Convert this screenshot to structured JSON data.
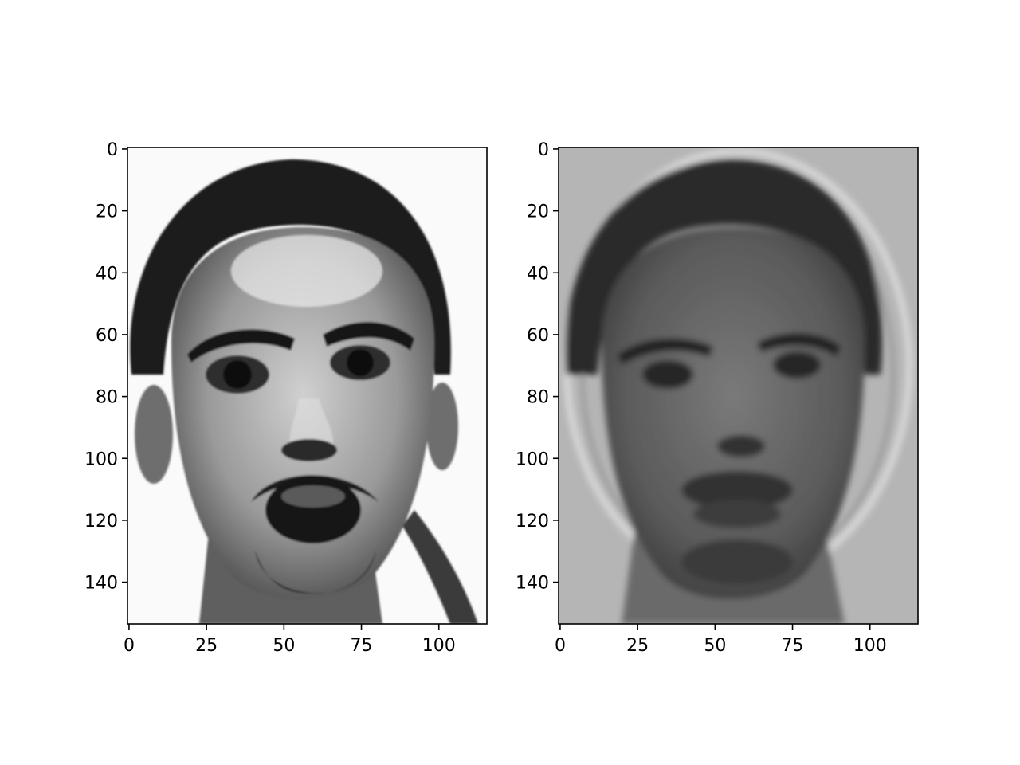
{
  "chart_data": [
    {
      "type": "heatmap",
      "colormap": "gray",
      "content": "grayscale face image (original)",
      "xlim": [
        -0.5,
        115.5
      ],
      "ylim": [
        153.5,
        -0.5
      ],
      "x_ticks": [
        0,
        25,
        50,
        75,
        100
      ],
      "y_ticks": [
        0,
        20,
        40,
        60,
        80,
        100,
        120,
        140
      ],
      "background_shade": "#fafafa",
      "title": "",
      "xlabel": "",
      "ylabel": ""
    },
    {
      "type": "heatmap",
      "colormap": "gray",
      "content": "grayscale face image (reconstruction, blurred)",
      "xlim": [
        -0.5,
        115.5
      ],
      "ylim": [
        153.5,
        -0.5
      ],
      "x_ticks": [
        0,
        25,
        50,
        75,
        100
      ],
      "y_ticks": [
        0,
        20,
        40,
        60,
        80,
        100,
        120,
        140
      ],
      "background_shade": "#b5b5b5",
      "title": "",
      "xlabel": "",
      "ylabel": ""
    }
  ]
}
